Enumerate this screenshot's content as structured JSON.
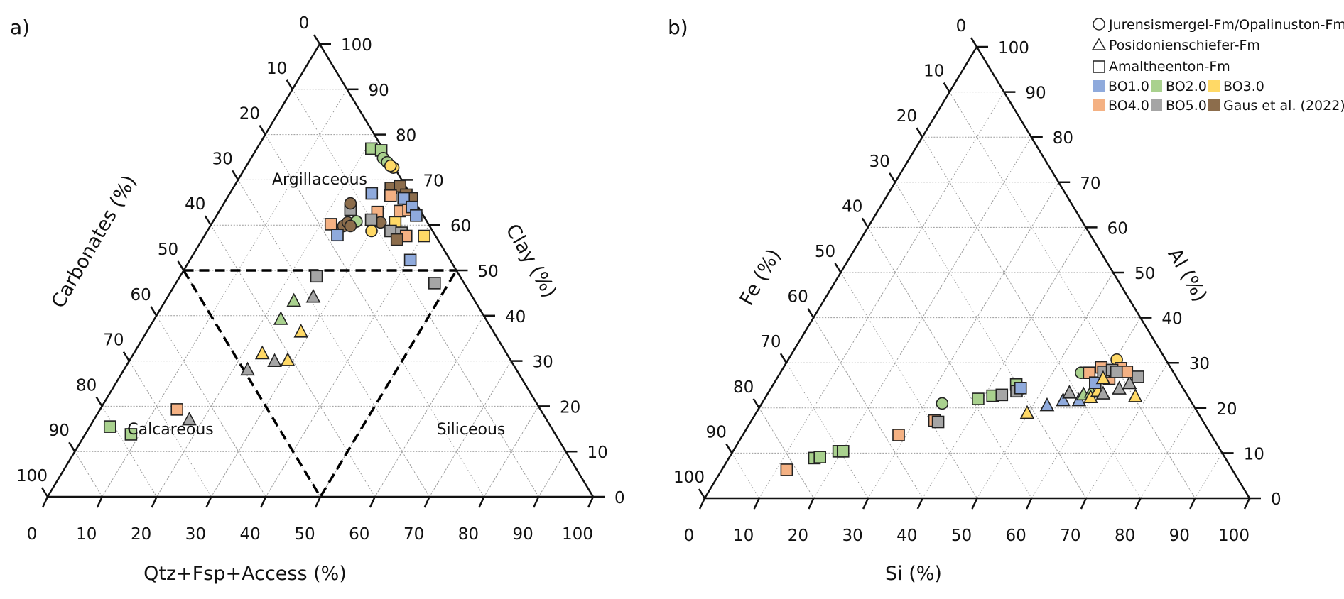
{
  "legend": {
    "shapes": [
      {
        "shape": "circle",
        "label": "Jurensismergel-Fm/Opalinuston-Fm"
      },
      {
        "shape": "triangle",
        "label": "Posidonienschiefer-Fm"
      },
      {
        "shape": "square",
        "label": "Amaltheenton-Fm"
      }
    ],
    "datasets": [
      {
        "label": "BO1.0",
        "color": "#8faadc"
      },
      {
        "label": "BO2.0",
        "color": "#a9d18e"
      },
      {
        "label": "BO3.0",
        "color": "#ffd966"
      },
      {
        "label": "BO4.0",
        "color": "#f4b183"
      },
      {
        "label": "BO5.0",
        "color": "#a5a5a5"
      },
      {
        "label": "Gaus et al. (2022)",
        "color": "#8c6d4c"
      }
    ]
  },
  "chart_data": [
    {
      "type": "ternary-scatter",
      "panel_label": "a)",
      "axes": {
        "bottom": "Qtz+Fsp+Access (%)",
        "left": "Carbonates (%)",
        "right": "Clay (%)"
      },
      "ticks": [
        0,
        10,
        20,
        30,
        40,
        50,
        60,
        70,
        80,
        90,
        100
      ],
      "grid": true,
      "regions": [
        "Argillaceous",
        "Calcareous",
        "Siliceous"
      ],
      "boundaries": [
        "Clay = 50",
        "Carbonates = 50",
        "Qtz+Fsp+Access = 50"
      ],
      "point_fields": [
        "dataset",
        "formation_shape",
        "Qtz+Fsp+Access",
        "Clay",
        "Carbonates"
      ],
      "points": [
        [
          "BO2.0",
          "square",
          21.0,
          76.9,
          2.1
        ],
        [
          "BO2.0",
          "square",
          23.0,
          76.5,
          0.5
        ],
        [
          "BO2.0",
          "circle",
          24.2,
          74.8,
          1.0
        ],
        [
          "BO2.0",
          "circle",
          25.4,
          73.9,
          0.7
        ],
        [
          "BO3.0",
          "circle",
          27.1,
          72.7,
          0.2
        ],
        [
          "BO3.0",
          "circle",
          26.4,
          73.1,
          0.5
        ],
        [
          "BO1.0",
          "square",
          26.0,
          67.0,
          7.0
        ],
        [
          "Gaus et al. (2022)",
          "square",
          28.9,
          68.2,
          2.9
        ],
        [
          "Gaus et al. (2022)",
          "square",
          30.4,
          68.6,
          1.0
        ],
        [
          "Gaus et al. (2022)",
          "square",
          32.5,
          66.7,
          0.8
        ],
        [
          "Gaus et al. (2022)",
          "square",
          33.9,
          65.9,
          0.2
        ],
        [
          "BO4.0",
          "square",
          29.7,
          66.5,
          3.8
        ],
        [
          "BO4.0",
          "square",
          29.1,
          62.9,
          8.0
        ],
        [
          "BO4.0",
          "square",
          33.1,
          63.1,
          3.8
        ],
        [
          "BO4.0",
          "square",
          34.6,
          63.3,
          2.1
        ],
        [
          "BO1.0",
          "square",
          32.4,
          65.9,
          1.7
        ],
        [
          "BO1.0",
          "square",
          34.9,
          64.0,
          1.1
        ],
        [
          "BO1.0",
          "square",
          36.6,
          62.1,
          1.3
        ],
        [
          "BO5.0",
          "square",
          23.9,
          63.4,
          12.7
        ],
        [
          "Gaus et al. (2022)",
          "circle",
          23.2,
          64.8,
          12.0
        ],
        [
          "Gaus et al. (2022)",
          "circle",
          24.4,
          59.8,
          15.8
        ],
        [
          "Gaus et al. (2022)",
          "circle",
          24.8,
          60.6,
          14.6
        ],
        [
          "BO2.0",
          "circle",
          26.3,
          60.8,
          12.9
        ],
        [
          "Gaus et al. (2022)",
          "circle",
          25.7,
          59.8,
          14.5
        ],
        [
          "Gaus et al. (2022)",
          "circle",
          30.8,
          60.6,
          8.6
        ],
        [
          "BO4.0",
          "square",
          21.9,
          60.2,
          17.9
        ],
        [
          "BO1.0",
          "square",
          24.3,
          57.8,
          17.9
        ],
        [
          "BO5.0",
          "square",
          28.8,
          61.2,
          10.0
        ],
        [
          "BO3.0",
          "circle",
          30.1,
          58.7,
          11.2
        ],
        [
          "BO3.0",
          "square",
          33.5,
          60.6,
          5.9
        ],
        [
          "BO5.0",
          "square",
          33.6,
          58.7,
          7.7
        ],
        [
          "BO5.0",
          "square",
          35.8,
          58.3,
          5.9
        ],
        [
          "BO4.0",
          "square",
          37.0,
          57.6,
          5.4
        ],
        [
          "Gaus et al. (2022)",
          "square",
          35.7,
          56.8,
          7.5
        ],
        [
          "BO3.0",
          "square",
          40.3,
          57.6,
          2.1
        ],
        [
          "BO1.0",
          "square",
          40.4,
          52.3,
          7.3
        ],
        [
          "BO5.0",
          "square",
          47.4,
          47.2,
          5.4
        ],
        [
          "BO5.0",
          "square",
          25.0,
          48.7,
          26.3
        ],
        [
          "BO5.0",
          "triangle",
          26.7,
          44.1,
          29.2
        ],
        [
          "BO2.0",
          "triangle",
          23.6,
          43.2,
          33.2
        ],
        [
          "BO2.0",
          "triangle",
          23.2,
          39.2,
          37.6
        ],
        [
          "BO3.0",
          "triangle",
          28.3,
          36.4,
          35.3
        ],
        [
          "BO3.0",
          "triangle",
          23.6,
          31.6,
          44.8
        ],
        [
          "BO5.0",
          "triangle",
          26.7,
          29.9,
          43.4
        ],
        [
          "BO3.0",
          "triangle",
          29.0,
          30.1,
          40.9
        ],
        [
          "BO5.0",
          "triangle",
          22.7,
          28.0,
          49.3
        ],
        [
          "BO4.0",
          "square",
          14.1,
          19.3,
          66.6
        ],
        [
          "BO5.0",
          "triangle",
          17.5,
          17.0,
          65.5
        ],
        [
          "BO2.0",
          "square",
          3.7,
          15.5,
          80.8
        ],
        [
          "BO2.0",
          "square",
          8.4,
          13.8,
          77.8
        ]
      ]
    },
    {
      "type": "ternary-scatter",
      "panel_label": "b)",
      "axes": {
        "bottom": "Si (%)",
        "left": "Fe (%)",
        "right": "Al (%)"
      },
      "ticks": [
        0,
        10,
        20,
        30,
        40,
        50,
        60,
        70,
        80,
        90,
        100
      ],
      "grid": true,
      "point_fields": [
        "dataset",
        "formation_shape",
        "Si",
        "Al",
        "Fe"
      ],
      "points": [
        [
          "BO2.0",
          "circle",
          33.1,
          21.0,
          45.9
        ],
        [
          "BO2.0",
          "square",
          39.2,
          22.0,
          38.8
        ],
        [
          "BO2.0",
          "square",
          41.5,
          22.7,
          35.8
        ],
        [
          "BO5.0",
          "square",
          43.1,
          22.9,
          34.0
        ],
        [
          "BO2.0",
          "square",
          44.6,
          25.2,
          30.2
        ],
        [
          "BO5.0",
          "square",
          45.4,
          23.7,
          30.9
        ],
        [
          "BO1.0",
          "square",
          45.8,
          24.4,
          29.8
        ],
        [
          "BO4.0",
          "square",
          33.6,
          17.2,
          49.2
        ],
        [
          "BO5.0",
          "square",
          34.4,
          16.9,
          48.7
        ],
        [
          "BO4.0",
          "square",
          28.6,
          14.0,
          57.4
        ],
        [
          "BO2.0",
          "square",
          15.7,
          8.9,
          75.4
        ],
        [
          "BO2.0",
          "square",
          16.6,
          9.1,
          74.3
        ],
        [
          "BO2.0",
          "square",
          19.4,
          10.4,
          70.2
        ],
        [
          "BO2.0",
          "square",
          20.2,
          10.4,
          69.4
        ],
        [
          "BO4.0",
          "square",
          11.9,
          6.3,
          81.8
        ],
        [
          "BO3.0",
          "triangle",
          49.8,
          18.8,
          31.4
        ],
        [
          "BO1.0",
          "triangle",
          52.6,
          20.5,
          26.9
        ],
        [
          "BO1.0",
          "triangle",
          55.0,
          21.6,
          23.4
        ],
        [
          "BO5.0",
          "triangle",
          55.3,
          23.3,
          21.4
        ],
        [
          "BO1.0",
          "triangle",
          57.9,
          21.6,
          20.5
        ],
        [
          "BO2.0",
          "triangle",
          58.1,
          22.9,
          19.0
        ],
        [
          "BO2.0",
          "triangle",
          59.2,
          23.5,
          17.3
        ],
        [
          "BO3.0",
          "triangle",
          59.7,
          22.3,
          18.0
        ],
        [
          "BO3.0",
          "triangle",
          60.3,
          23.7,
          16.0
        ],
        [
          "BO5.0",
          "triangle",
          61.6,
          23.1,
          15.3
        ],
        [
          "BO5.0",
          "triangle",
          64.0,
          24.2,
          11.8
        ],
        [
          "BO5.0",
          "triangle",
          65.3,
          25.4,
          9.3
        ],
        [
          "BO3.0",
          "triangle",
          67.8,
          22.5,
          9.7
        ],
        [
          "BO2.0",
          "circle",
          55.2,
          27.8,
          17.0
        ],
        [
          "BO3.0",
          "circle",
          60.3,
          30.7,
          9.0
        ],
        [
          "BO4.0",
          "square",
          56.7,
          27.8,
          15.5
        ],
        [
          "BO1.0",
          "square",
          58.9,
          25.6,
          15.5
        ],
        [
          "BO4.0",
          "square",
          58.3,
          29.0,
          12.7
        ],
        [
          "BO4.0",
          "square",
          62.0,
          28.8,
          9.2
        ],
        [
          "BO4.0",
          "square",
          63.5,
          28.0,
          8.5
        ],
        [
          "BO4.0",
          "square",
          61.0,
          26.5,
          12.5
        ],
        [
          "BO5.0",
          "square",
          59.2,
          28.0,
          12.8
        ],
        [
          "BO5.0",
          "square",
          60.6,
          28.4,
          11.0
        ],
        [
          "BO5.0",
          "square",
          61.6,
          28.0,
          10.4
        ],
        [
          "BO5.0",
          "square",
          66.1,
          26.9,
          7.0
        ],
        [
          "BO3.0",
          "triangle",
          59.9,
          26.5,
          13.6
        ]
      ]
    }
  ]
}
